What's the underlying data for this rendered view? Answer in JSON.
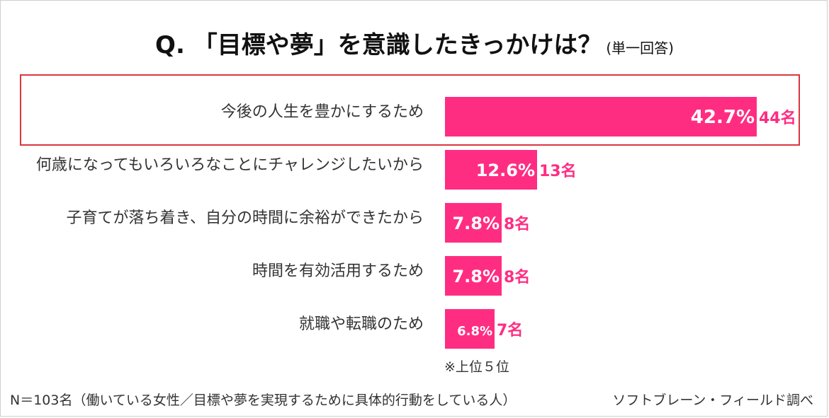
{
  "title": "Q. 「目標や夢」を意識したきっかけは？",
  "title_note": "(単一回答)",
  "chart_data": {
    "type": "bar",
    "orientation": "horizontal",
    "categories": [
      "今後の人生を豊かにするため",
      "何歳になってもいろいろなことにチャレンジしたいから",
      "子育てが落ち着き、自分の時間に余裕ができたから",
      "時間を有効活用するため",
      "就職や転職のため"
    ],
    "values": [
      42.7,
      12.6,
      7.8,
      7.8,
      6.8
    ],
    "value_labels": [
      "42.7%",
      "12.6%",
      "7.8%",
      "7.8%",
      "6.8%"
    ],
    "counts": [
      "44名",
      "13名",
      "8名",
      "8名",
      "7名"
    ],
    "bar_color": "#ff2d82",
    "count_color": "#ff2d82",
    "highlight_color": "#d9363e",
    "highlighted_index": 0,
    "xlim": [
      0,
      42.7
    ],
    "grid": false
  },
  "footnote": "※上位５位",
  "sample_note": "N＝103名（働いている女性／目標や夢を実現するために具体的行動をしている人）",
  "source": "ソフトブレーン・フィールド調べ"
}
